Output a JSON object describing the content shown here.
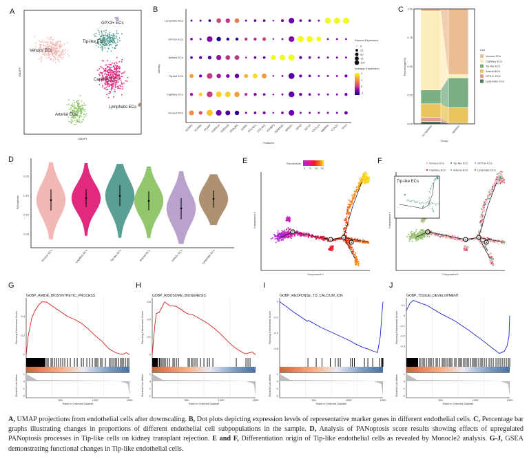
{
  "panel_labels": [
    "A",
    "B",
    "C",
    "D",
    "E",
    "F",
    "G",
    "H",
    "I",
    "J"
  ],
  "chart_data": [
    {
      "panel": "A",
      "type": "scatter",
      "xlabel": "UMAP1",
      "ylabel": "UMAP2",
      "clusters": [
        {
          "name": "Venous ECs",
          "color": "#f2b8b5"
        },
        {
          "name": "Tip-like ECs",
          "color": "#5a9e94"
        },
        {
          "name": "GPX3+ ECs",
          "color": "#b9a3cc"
        },
        {
          "name": "Capillary ECs",
          "color": "#e0297f"
        },
        {
          "name": "Arterial ECs",
          "color": "#8fc46a"
        },
        {
          "name": "Lymphatic ECs",
          "color": "#b08f6a"
        }
      ]
    },
    {
      "panel": "B",
      "type": "dotplot",
      "xlabel": "Features",
      "ylabel": "Identity",
      "genes": [
        "ACKR1",
        "VCAM1",
        "PLVAP",
        "HSPA1A",
        "HSPA1B",
        "DNAJB1",
        "ESM1",
        "COL4A1",
        "COL4A2",
        "IGFBP3",
        "SEMA3G",
        "SPARC",
        "GPX3",
        "MT1G",
        "CXCL14",
        "MMRN1",
        "CCL21",
        "TFF3"
      ],
      "rows": [
        {
          "name": "Lymphatic ECs",
          "pct": [
            5,
            5,
            10,
            45,
            40,
            45,
            5,
            10,
            10,
            3,
            15,
            70,
            10,
            10,
            5,
            80,
            85,
            85
          ],
          "exp": [
            -0.5,
            -0.5,
            -1,
            0.5,
            0.3,
            1,
            -0.5,
            -0.5,
            -0.5,
            -0.3,
            -0.2,
            -0.5,
            -0.5,
            -0.5,
            -0.3,
            2,
            2,
            2
          ]
        },
        {
          "name": "GPX3+ ECs",
          "pct": [
            10,
            5,
            70,
            40,
            15,
            15,
            15,
            15,
            25,
            3,
            5,
            70,
            85,
            85,
            50,
            5,
            5,
            5
          ],
          "exp": [
            -0.5,
            -0.5,
            -0.3,
            -1.2,
            -1,
            -1,
            0.3,
            0.2,
            0.5,
            -0.3,
            -0.3,
            -0.3,
            2,
            2,
            2,
            -0.3,
            -0.3,
            -0.3
          ]
        },
        {
          "name": "Arterial ECs",
          "pct": [
            10,
            15,
            25,
            55,
            45,
            45,
            3,
            10,
            10,
            50,
            70,
            85,
            15,
            10,
            5,
            5,
            5,
            5
          ],
          "exp": [
            -0.8,
            -0.5,
            -0.8,
            0,
            0.3,
            0.3,
            -0.3,
            -0.5,
            -0.5,
            2,
            2,
            2,
            -0.5,
            -0.5,
            -0.3,
            -0.3,
            -0.3,
            -0.3
          ]
        },
        {
          "name": "Tip-like ECs",
          "pct": [
            30,
            15,
            70,
            40,
            25,
            40,
            30,
            50,
            50,
            3,
            5,
            80,
            15,
            10,
            5,
            5,
            5,
            15
          ],
          "exp": [
            1.3,
            -0.5,
            0.4,
            0,
            -0.3,
            -0.5,
            1.5,
            1.8,
            1.3,
            -0.3,
            -0.3,
            -0.7,
            -0.5,
            -0.5,
            -0.3,
            -0.3,
            -0.3,
            -0.5
          ]
        },
        {
          "name": "Capillary ECs",
          "pct": [
            15,
            25,
            75,
            70,
            65,
            60,
            15,
            15,
            10,
            3,
            5,
            75,
            15,
            10,
            5,
            5,
            5,
            15
          ],
          "exp": [
            0,
            1.7,
            0.4,
            1.7,
            1.7,
            1.3,
            0.3,
            -0.3,
            -0.3,
            -0.3,
            -0.3,
            -0.6,
            -0.5,
            -0.5,
            -0.3,
            -0.3,
            -0.3,
            -0.5
          ]
        },
        {
          "name": "Venous ECs",
          "pct": [
            50,
            25,
            85,
            70,
            50,
            40,
            5,
            10,
            15,
            3,
            10,
            70,
            5,
            5,
            5,
            5,
            5,
            20
          ],
          "exp": [
            1.2,
            0.6,
            1.6,
            -0.5,
            -0.8,
            -1,
            -0.5,
            -0.5,
            -0.3,
            -0.3,
            -0.3,
            -0.5,
            -0.3,
            -0.3,
            -0.3,
            -0.3,
            -0.3,
            -0.5
          ]
        }
      ],
      "legend_size_title": "Percent Expressed",
      "legend_size_values": [
        0,
        25,
        50,
        75,
        100
      ],
      "legend_color_title": "Average Expression",
      "legend_color_ticks": [
        2,
        1,
        0,
        -1
      ]
    },
    {
      "panel": "C",
      "type": "stacked_bar",
      "xlabel": "Group",
      "ylabel": "Percentage(%)",
      "yticks": [
        "0.00",
        "0.25",
        "0.50",
        "0.75",
        "1.00"
      ],
      "groups": [
        "no rejection",
        "rejection"
      ],
      "legend_title": "Cell",
      "series": [
        {
          "name": "Venous ECs",
          "color": "#ebbd93",
          "values": [
            0.02,
            0.57
          ]
        },
        {
          "name": "Capillary ECs",
          "color": "#fcedbc",
          "values": [
            0.685,
            0.03
          ]
        },
        {
          "name": "Tip-like ECs",
          "color": "#7aaf82",
          "values": [
            0.12,
            0.26
          ]
        },
        {
          "name": "Arterial ECs",
          "color": "#e9c55c",
          "values": [
            0.12,
            0.135
          ]
        },
        {
          "name": "GPX3+ ECs",
          "color": "#e09a92",
          "values": [
            0.035,
            0.003
          ]
        },
        {
          "name": "Lymphatic ECs",
          "color": "#4f7a5b",
          "values": [
            0.02,
            0.002
          ]
        }
      ]
    },
    {
      "panel": "D",
      "type": "violin",
      "ylabel": "PANoptosis",
      "yticks": [
        "0.05",
        "0.10",
        "0.15",
        "0.20"
      ],
      "groups": [
        {
          "name": "Venous ECs",
          "color": "#f2b8b5",
          "median": 0.138,
          "lo": 0.111,
          "hi": 0.166,
          "min": 0.036,
          "max": 0.236
        },
        {
          "name": "Capillary ECs",
          "color": "#e0297f",
          "median": 0.143,
          "lo": 0.12,
          "hi": 0.166,
          "min": 0.045,
          "max": 0.234
        },
        {
          "name": "Tip-like ECs",
          "color": "#5a9e94",
          "median": 0.149,
          "lo": 0.122,
          "hi": 0.177,
          "min": 0.04,
          "max": 0.232
        },
        {
          "name": "Arterial ECs",
          "color": "#92c76e",
          "median": 0.136,
          "lo": 0.111,
          "hi": 0.161,
          "min": 0.039,
          "max": 0.225
        },
        {
          "name": "GPX3+ ECs",
          "color": "#b9a3cc",
          "median": 0.116,
          "lo": 0.088,
          "hi": 0.143,
          "min": 0.024,
          "max": 0.213
        },
        {
          "name": "Lymphatic ECs",
          "color": "#ae9170",
          "median": 0.141,
          "lo": 0.118,
          "hi": 0.163,
          "min": 0.073,
          "max": 0.205
        }
      ]
    },
    {
      "panel": "E",
      "type": "trajectory",
      "xlabel": "Component 1",
      "ylabel": "Component 2",
      "legend_title": "Pseudotime",
      "legend_ticks": [
        "0",
        "5",
        "10",
        "15"
      ],
      "node_labels": [
        "1",
        "2",
        "3",
        "4"
      ]
    },
    {
      "panel": "F",
      "type": "trajectory",
      "xlabel": "Component 1",
      "ylabel": "Component 2",
      "legend_title": "Celltype",
      "legend_items": [
        "Venous ECs",
        "Tip-like ECs",
        "GPX3+ ECs",
        "Capillary ECs",
        "Arterial ECs",
        "Lymphatic ECs"
      ],
      "inset_title": "Tip-like ECs"
    },
    {
      "panel": "G",
      "type": "line",
      "title": "GOBP_AMIDE_BIOSYNTHETIC_PROCESS",
      "color": "#d11f1f",
      "ylim": [
        -0.02,
        0.58
      ],
      "yticks": [
        0.0,
        0.2,
        0.4
      ],
      "x": [
        0,
        30,
        80,
        120,
        180,
        230,
        300,
        400,
        500,
        600,
        700,
        800,
        900,
        1000,
        1100,
        1200,
        1300,
        1400,
        1450,
        1500
      ],
      "y": [
        0,
        0.2,
        0.38,
        0.45,
        0.52,
        0.555,
        0.55,
        0.5,
        0.45,
        0.4,
        0.37,
        0.33,
        0.27,
        0.2,
        0.14,
        0.06,
        0.02,
        0,
        0.02,
        0.0
      ],
      "hit_dense_until": 280,
      "hits": [
        300,
        320,
        360,
        380,
        410,
        440,
        470,
        500,
        530,
        560,
        600,
        640,
        700,
        740,
        800,
        830,
        880,
        920,
        960,
        1000,
        1020,
        1040,
        1080,
        1100,
        1150,
        1210,
        1230,
        1260,
        1290,
        1310,
        1340,
        1370,
        1390,
        1410,
        1440,
        1470,
        1490
      ]
    },
    {
      "panel": "H",
      "type": "line",
      "title": "GOBP_RIBOSOME_BIOGENESIS",
      "color": "#d11f1f",
      "ylim": [
        -0.02,
        0.63
      ],
      "yticks": [
        0.0,
        0.2,
        0.4,
        0.6
      ],
      "x": [
        0,
        40,
        60,
        100,
        180,
        250,
        350,
        500,
        600,
        800,
        900,
        1000,
        1100,
        1200,
        1300,
        1350,
        1400,
        1450,
        1500
      ],
      "y": [
        0,
        0.35,
        0.47,
        0.48,
        0.6,
        0.56,
        0.55,
        0.47,
        0.45,
        0.36,
        0.3,
        0.23,
        0.15,
        0.08,
        0.03,
        0.01,
        0.02,
        0.03,
        0.0
      ],
      "hit_dense_until": 80,
      "hits": [
        100,
        110,
        130,
        150,
        170,
        190,
        220,
        250,
        300,
        320,
        350,
        380,
        520,
        540,
        570,
        590,
        620,
        650,
        700,
        750,
        800,
        830,
        880,
        1220,
        1360,
        1390,
        1420
      ]
    },
    {
      "panel": "I",
      "type": "line",
      "title": "GOBP_RESPONSE_TO_CALCIUM_ION",
      "color": "#1f22d1",
      "ylim": [
        -0.7,
        0.03
      ],
      "yticks": [
        0.0,
        -0.2,
        -0.4,
        -0.6
      ],
      "x": [
        0,
        200,
        400,
        420,
        600,
        800,
        1000,
        1100,
        1200,
        1300,
        1350,
        1420,
        1460,
        1490,
        1500
      ],
      "y": [
        0,
        -0.13,
        -0.25,
        -0.24,
        -0.33,
        -0.41,
        -0.49,
        -0.54,
        -0.58,
        -0.61,
        -0.63,
        -0.65,
        -0.45,
        -0.1,
        0.0
      ],
      "hit_dense_until": 0,
      "hits": [
        410,
        530,
        615,
        735,
        805,
        850,
        880,
        1030,
        1055,
        1085,
        1230,
        1280,
        1350,
        1450,
        1480,
        1490,
        1500
      ]
    },
    {
      "panel": "J",
      "type": "line",
      "title": "GOBP_TISSUE_DEVELOPMENT",
      "color": "#1f22d1",
      "ylim": [
        -0.4,
        0.16
      ],
      "yticks": [
        0.1,
        0.0,
        -0.1,
        -0.2,
        -0.3
      ],
      "x": [
        0,
        50,
        100,
        300,
        500,
        700,
        900,
        1100,
        1250,
        1350,
        1420,
        1460,
        1490,
        1500
      ],
      "y": [
        0.05,
        0.12,
        0.15,
        0.1,
        0.02,
        -0.05,
        -0.14,
        -0.24,
        -0.32,
        -0.37,
        -0.35,
        -0.3,
        -0.2,
        0.0
      ],
      "hit_dense_until": 170,
      "hits": [
        190,
        210,
        240,
        260,
        290,
        320,
        340,
        360,
        390,
        430,
        450,
        480,
        520,
        540,
        560,
        590,
        620,
        640,
        660,
        700,
        720,
        760,
        780,
        800,
        830,
        850,
        880,
        900,
        930,
        960,
        980,
        1000,
        1020,
        1050,
        1080,
        1100,
        1130,
        1160,
        1200,
        1230,
        1260,
        1300,
        1330,
        1360,
        1390,
        1420,
        1450,
        1480,
        1500
      ]
    }
  ],
  "gsea_common": {
    "ylabel_es": "Running Enrichment Score",
    "ylabel_rank": "Ranked List Metric",
    "xlabel": "Rank in Ordered Dataset",
    "xticks": [
      500,
      1000,
      1500
    ],
    "rank_ticks": [
      1,
      0,
      -1,
      -2
    ]
  },
  "caption": [
    {
      "b": "A,",
      "t": " UMAP projections from endothelial cells after downscaling. "
    },
    {
      "b": "B,",
      "t": " Dot plots depicting expression levels of representative marker genes in different endothelial cells. "
    },
    {
      "b": "C,",
      "t": " Percentage bar graphs illustrating changes in proportions of different endothelial cell subpopulations in the sample. "
    },
    {
      "b": "D,",
      "t": " Analysis of PANoptosis score results showing effects of upregulated PANoptosis processes in Tip-like cells on kidney transplant rejection. "
    },
    {
      "b": "E and F,",
      "t": " Differentiation origin of Tip-like endothelial cells as revealed by Monocle2 analysis. "
    },
    {
      "b": "G-J,",
      "t": " GSEA demonstrating functional changes in Tip-like endothelial cells."
    }
  ]
}
